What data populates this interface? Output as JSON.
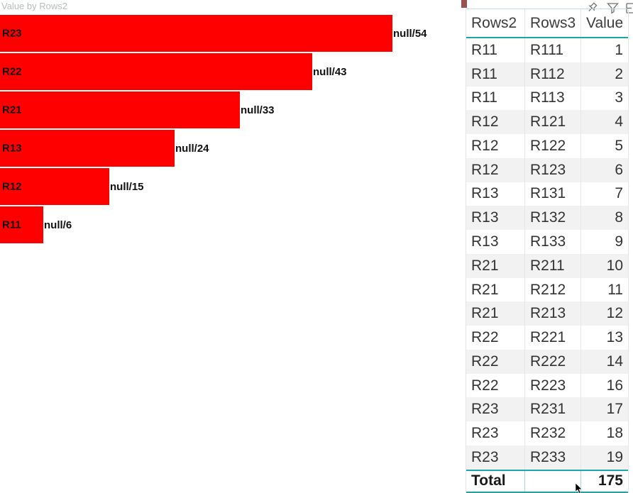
{
  "chart_data": [
    {
      "type": "bar",
      "orientation": "horizontal",
      "title": "Value by Rows2",
      "categories": [
        "R23",
        "R22",
        "R21",
        "R13",
        "R12",
        "R11"
      ],
      "values": [
        54,
        43,
        33,
        24,
        15,
        6
      ],
      "data_labels": [
        "null/54",
        "null/43",
        "null/33",
        "null/24",
        "null/15",
        "null/6"
      ],
      "bar_color": "#fe0000",
      "axis_max": 54,
      "xlim": [
        0,
        54
      ],
      "grid": false,
      "axes_visible": false,
      "legend": "none"
    },
    {
      "type": "table",
      "columns": [
        "Rows2",
        "Rows3",
        "Value"
      ],
      "rows": [
        [
          "R11",
          "R111",
          1
        ],
        [
          "R11",
          "R112",
          2
        ],
        [
          "R11",
          "R113",
          3
        ],
        [
          "R12",
          "R121",
          4
        ],
        [
          "R12",
          "R122",
          5
        ],
        [
          "R12",
          "R123",
          6
        ],
        [
          "R13",
          "R131",
          7
        ],
        [
          "R13",
          "R132",
          8
        ],
        [
          "R13",
          "R133",
          9
        ],
        [
          "R21",
          "R211",
          10
        ],
        [
          "R21",
          "R212",
          11
        ],
        [
          "R21",
          "R213",
          12
        ],
        [
          "R22",
          "R221",
          13
        ],
        [
          "R22",
          "R222",
          14
        ],
        [
          "R22",
          "R223",
          16
        ],
        [
          "R23",
          "R231",
          17
        ],
        [
          "R23",
          "R232",
          18
        ],
        [
          "R23",
          "R233",
          19
        ]
      ],
      "total": {
        "label": "Total",
        "value": 175
      }
    }
  ],
  "visual_header_icons": [
    "pin-icon",
    "filter-icon",
    "options-icon"
  ],
  "colors": {
    "bar_red": "#fe0000",
    "teal_border": "#1ea5a5",
    "alt_row_gray": "#f2f2f2",
    "title_gray": "#b5bdbd",
    "icon_gray": "#707070",
    "corner_artifact": "#9a5353"
  }
}
